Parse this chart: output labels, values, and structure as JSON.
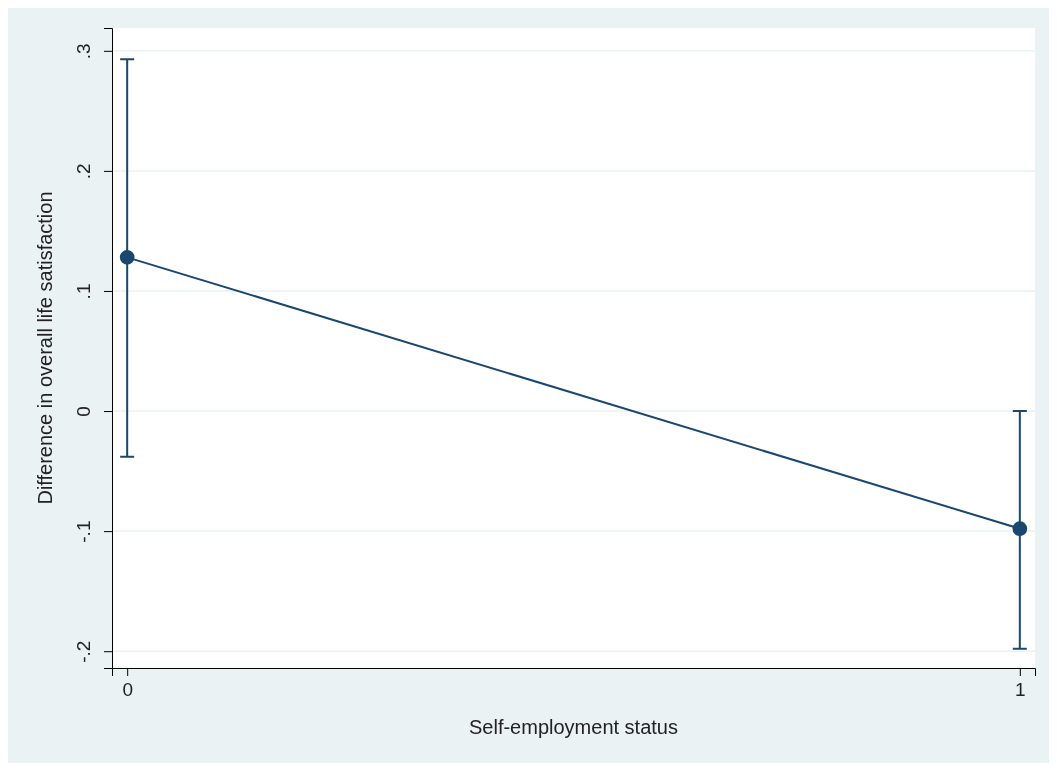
{
  "chart_data": {
    "type": "line",
    "xlabel": "Self-employment status",
    "ylabel": "Difference in overall life satisfaction",
    "x": [
      0,
      1
    ],
    "series": [
      {
        "color": "#1a476f",
        "values": [
          0.128,
          -0.098
        ],
        "errors": [
          [
            -0.038,
            0.293
          ],
          [
            -0.198,
            0.0
          ]
        ]
      }
    ],
    "xlim": [
      -0.017,
      1.017
    ],
    "xticks": [
      0,
      1
    ],
    "ylim": [
      -0.214,
      0.319
    ],
    "yticks": [
      {
        "value": -0.2,
        "label": "-.2"
      },
      {
        "value": -0.1,
        "label": "-.1"
      },
      0,
      {
        "value": 0.1,
        "label": ".1"
      },
      {
        "value": 0.2,
        "label": ".2"
      },
      {
        "value": 0.3,
        "label": ".3"
      }
    ],
    "grid": "y",
    "marker": "circle",
    "line_style": "solid"
  }
}
